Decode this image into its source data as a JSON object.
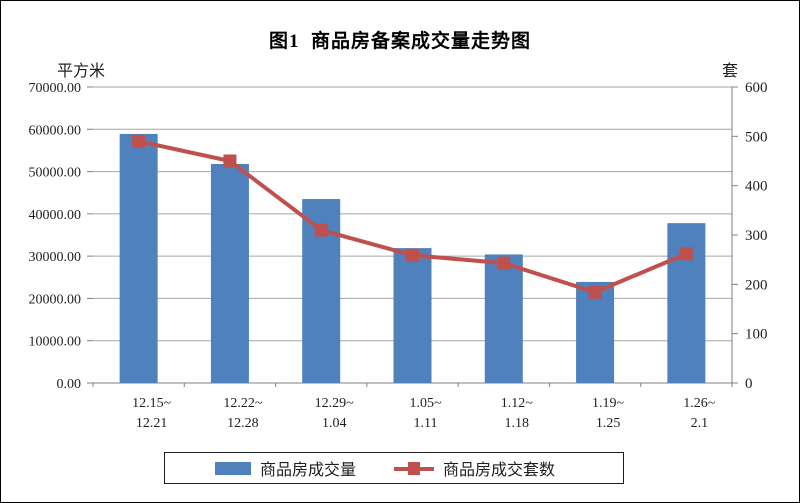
{
  "figure": {
    "title": "图1  商品房备案成交量走势图",
    "left_unit": "平方米",
    "right_unit": "套"
  },
  "chart_data": {
    "type": "bar",
    "subtype": "bar-and-line-combo",
    "title": "图1  商品房备案成交量走势图",
    "categories": [
      [
        "12.15~",
        "12.21"
      ],
      [
        "12.22~",
        "12.28"
      ],
      [
        "12.29~",
        "1.04"
      ],
      [
        "1.05~",
        "1.11"
      ],
      [
        "1.12~",
        "1.18"
      ],
      [
        "1.19~",
        "1.25"
      ],
      [
        "1.26~",
        "2.1"
      ]
    ],
    "series": [
      {
        "name": "商品房成交量",
        "type": "bar",
        "axis": "left",
        "unit": "平方米",
        "color": "#4F81BD",
        "values": [
          58900,
          51800,
          43500,
          31900,
          30400,
          23900,
          37800
        ]
      },
      {
        "name": "商品房成交套数",
        "type": "line",
        "axis": "right",
        "unit": "套",
        "color": "#C0504D",
        "marker": "square",
        "values": [
          490,
          450,
          310,
          259,
          243,
          184,
          262
        ]
      }
    ],
    "left_axis": {
      "label": "平方米",
      "min": 0,
      "max": 70000,
      "step": 10000,
      "tick_labels": [
        "0.00",
        "10000.00",
        "20000.00",
        "30000.00",
        "40000.00",
        "50000.00",
        "60000.00",
        "70000.00"
      ]
    },
    "right_axis": {
      "label": "套",
      "min": 0,
      "max": 600,
      "step": 100,
      "tick_labels": [
        "0",
        "100",
        "200",
        "300",
        "400",
        "500",
        "600"
      ]
    },
    "grid": true,
    "legend_position": "bottom"
  },
  "legend": {
    "items": [
      {
        "label": "商品房成交量",
        "swatch": "bar",
        "color": "#4F81BD"
      },
      {
        "label": "商品房成交套数",
        "swatch": "line-marker",
        "color": "#C0504D"
      }
    ]
  },
  "colors": {
    "bar": "#4F81BD",
    "line": "#C0504D",
    "grid": "#A6A6A6",
    "axis": "#808080",
    "text": "#1f1f1f",
    "background": "#FFFFFF",
    "border": "#000000"
  }
}
